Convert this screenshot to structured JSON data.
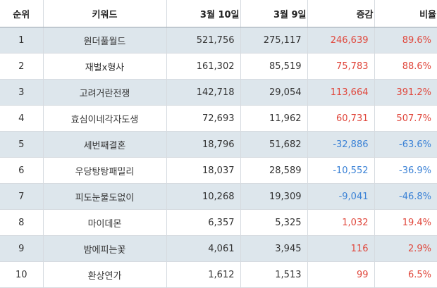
{
  "headers": [
    "순위",
    "키워드",
    "3월 10일",
    "3월 9일",
    "증감",
    "비율"
  ],
  "rows": [
    {
      "rank": "1",
      "keyword": "원더풀월드",
      "cur": "521,756",
      "prev": "275,117",
      "diff": "246,639",
      "rate": "89.6%",
      "trend": "up"
    },
    {
      "rank": "2",
      "keyword": "재벌x형사",
      "cur": "161,302",
      "prev": "85,519",
      "diff": "75,783",
      "rate": "88.6%",
      "trend": "up"
    },
    {
      "rank": "3",
      "keyword": "고려거란전쟁",
      "cur": "142,718",
      "prev": "29,054",
      "diff": "113,664",
      "rate": "391.2%",
      "trend": "up"
    },
    {
      "rank": "4",
      "keyword": "효심이네각자도생",
      "cur": "72,693",
      "prev": "11,962",
      "diff": "60,731",
      "rate": "507.7%",
      "trend": "up"
    },
    {
      "rank": "5",
      "keyword": "세번째결혼",
      "cur": "18,796",
      "prev": "51,682",
      "diff": "-32,886",
      "rate": "-63.6%",
      "trend": "down"
    },
    {
      "rank": "6",
      "keyword": "우당탕탕패밀리",
      "cur": "18,037",
      "prev": "28,589",
      "diff": "-10,552",
      "rate": "-36.9%",
      "trend": "down"
    },
    {
      "rank": "7",
      "keyword": "피도눈물도없이",
      "cur": "10,268",
      "prev": "19,309",
      "diff": "-9,041",
      "rate": "-46.8%",
      "trend": "down"
    },
    {
      "rank": "8",
      "keyword": "마이데몬",
      "cur": "6,357",
      "prev": "5,325",
      "diff": "1,032",
      "rate": "19.4%",
      "trend": "up"
    },
    {
      "rank": "9",
      "keyword": "밤에피는꽃",
      "cur": "4,061",
      "prev": "3,945",
      "diff": "116",
      "rate": "2.9%",
      "trend": "up"
    },
    {
      "rank": "10",
      "keyword": "환상연가",
      "cur": "1,612",
      "prev": "1,513",
      "diff": "99",
      "rate": "6.5%",
      "trend": "up"
    }
  ],
  "colors": {
    "up": "#e0473c",
    "down": "#3b82d6",
    "stripe": "#dde6ec"
  }
}
